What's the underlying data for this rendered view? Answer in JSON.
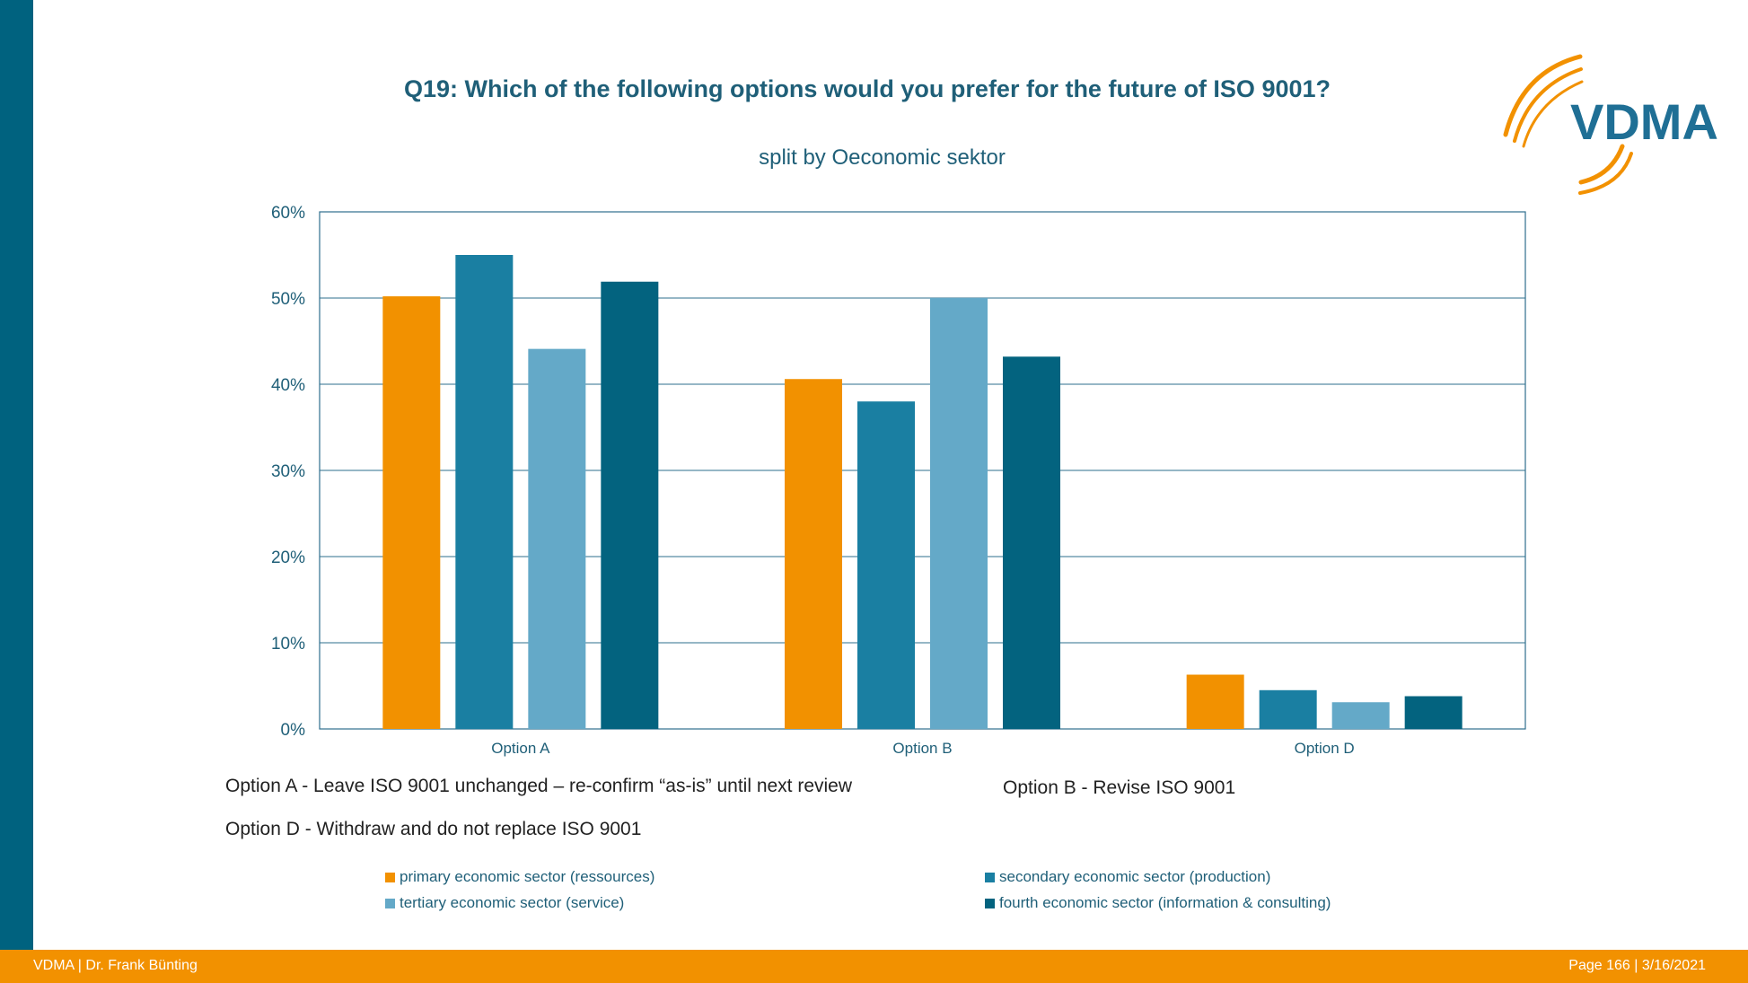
{
  "title": "Q19: Which of the following options would you prefer for the future of ISO 9001?",
  "subtitle": "split by Oeconomic sektor",
  "logo": {
    "text": "VDMA",
    "color": "#1f6f95",
    "arc_color": "#f29100"
  },
  "notes": {
    "option_a": "Option A - Leave ISO 9001 unchanged – re-confirm “as-is”  until next review",
    "option_b": "Option B - Revise ISO 9001",
    "option_d": "Option D - Withdraw and do not replace ISO 9001"
  },
  "footer": {
    "left": "VDMA | Dr.  Frank Bünting",
    "right": "Page 166 | 3/16/2021"
  },
  "colors": {
    "accent": "#00627f",
    "orange": "#f29100",
    "text": "#1f5f78",
    "gridline": "#2e6f8e"
  },
  "chart_data": {
    "type": "bar",
    "title": "Q19: Which of the following options would you prefer for the future of ISO 9001?",
    "subtitle": "split by Oeconomic sektor",
    "categories": [
      "Option A",
      "Option B",
      "Option D"
    ],
    "ylim": [
      0,
      60
    ],
    "yticks": [
      "0%",
      "10%",
      "20%",
      "30%",
      "40%",
      "50%",
      "60%"
    ],
    "grid": true,
    "legend_position": "bottom",
    "series": [
      {
        "name": "primary economic sector (ressources)",
        "color": "#f29100",
        "values": [
          50.2,
          40.6,
          6.3
        ]
      },
      {
        "name": "secondary economic sector (production)",
        "color": "#1a7fa2",
        "values": [
          55.0,
          38.0,
          4.5
        ]
      },
      {
        "name": "tertiary economic sector (service)",
        "color": "#64a9c8",
        "values": [
          44.1,
          50.0,
          3.1
        ]
      },
      {
        "name": "fourth economic sector (information & consulting)",
        "color": "#03637f",
        "values": [
          51.9,
          43.2,
          3.8
        ]
      }
    ]
  }
}
